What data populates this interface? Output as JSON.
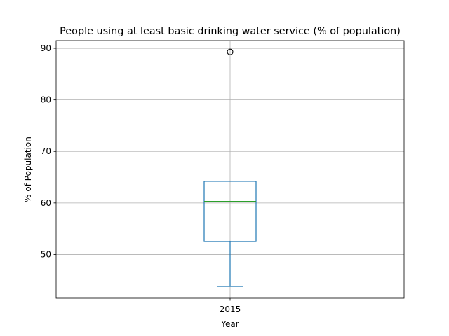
{
  "chart_data": {
    "type": "box",
    "title": "People using at least basic drinking water service (% of  population)",
    "xlabel": "Year",
    "ylabel": "% of Population",
    "categories": [
      "2015"
    ],
    "ylim": [
      41.5,
      91.5
    ],
    "yticks": [
      50,
      60,
      70,
      80,
      90
    ],
    "grid": true,
    "boxes": [
      {
        "category": "2015",
        "whisker_low": 43.8,
        "q1": 52.5,
        "median": 60.3,
        "q3": 64.2,
        "whisker_high": 64.2,
        "outliers": [
          89.3
        ]
      }
    ],
    "colors": {
      "box": "#1f77b4",
      "median": "#2ca02c",
      "flier": "#000000",
      "grid": "#b0b0b0"
    }
  }
}
